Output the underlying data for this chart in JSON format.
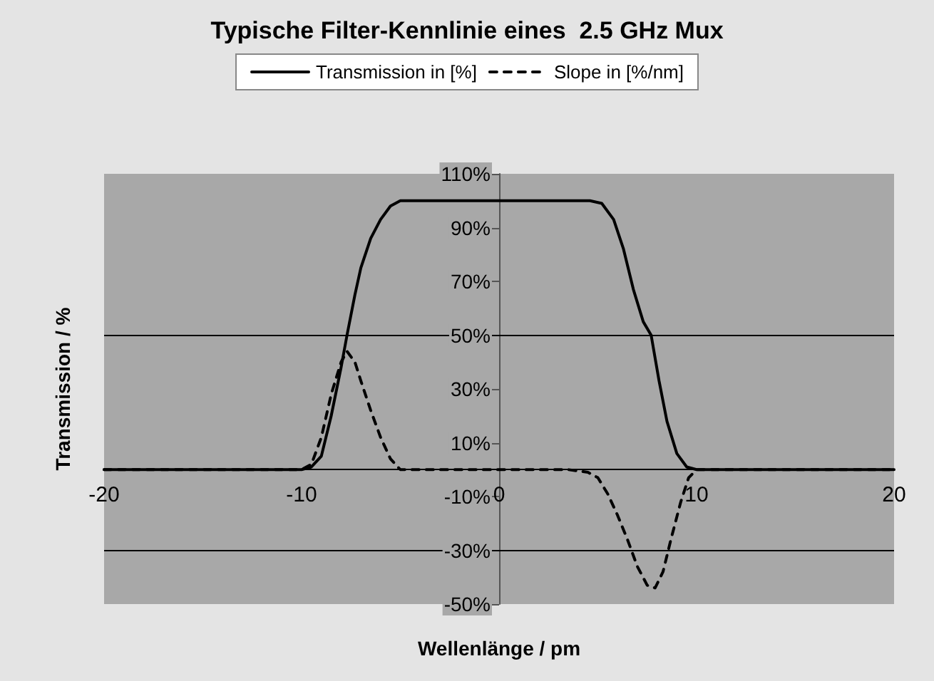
{
  "chart_data": {
    "type": "line",
    "title": "Typische Filter-Kennlinie eines  2.5 GHz Mux",
    "xlabel": "Wellenlänge / pm",
    "ylabel": "Transmission / %",
    "xlim": [
      -20,
      20
    ],
    "xticks": [
      -20,
      -10,
      0,
      10,
      20
    ],
    "ylim": [
      -50,
      110
    ],
    "yticks": [
      {
        "value": -50,
        "label": "-50%"
      },
      {
        "value": -30,
        "label": "-30%"
      },
      {
        "value": -10,
        "label": "-10%"
      },
      {
        "value": 10,
        "label": "10%"
      },
      {
        "value": 30,
        "label": "30%"
      },
      {
        "value": 50,
        "label": "50%"
      },
      {
        "value": 70,
        "label": "70%"
      },
      {
        "value": 90,
        "label": "90%"
      },
      {
        "value": 110,
        "label": "110%"
      }
    ],
    "grid": false,
    "legend": "top",
    "marker": "none",
    "ref_lines": [
      {
        "axis": "y",
        "value": 50,
        "color": "#000000"
      },
      {
        "axis": "y",
        "value": -30,
        "color": "#000000"
      }
    ],
    "series": [
      {
        "name": "Transmission in [%]",
        "color": "#000000",
        "line_style": "solid",
        "x": [
          -20,
          -10,
          -9.5,
          -9,
          -8.5,
          -8,
          -7.7,
          -7.3,
          -7,
          -6.5,
          -6,
          -5.5,
          -5,
          4.6,
          5.2,
          5.8,
          6.3,
          6.8,
          7.3,
          7.7,
          8.1,
          8.5,
          9,
          9.5,
          10,
          20
        ],
        "values": [
          0,
          0,
          1,
          5,
          20,
          38,
          50,
          65,
          75,
          86,
          93,
          98,
          100,
          100,
          99,
          93,
          82,
          67,
          55,
          50,
          33,
          18,
          6,
          1,
          0,
          0
        ]
      },
      {
        "name": "Slope in [%/nm]",
        "color": "#000000",
        "line_style": "dashed",
        "x": [
          -20,
          -10,
          -9.5,
          -9,
          -8.5,
          -8,
          -7.7,
          -7.3,
          -7,
          -6.5,
          -6,
          -5.5,
          -5,
          3.5,
          4.5,
          5,
          5.5,
          6,
          6.5,
          7,
          7.5,
          7.9,
          8.3,
          8.7,
          9.2,
          9.6,
          10,
          20
        ],
        "values": [
          0,
          0,
          2,
          12,
          28,
          40,
          44,
          40,
          33,
          22,
          12,
          4,
          0,
          0,
          -1,
          -3,
          -9,
          -17,
          -26,
          -36,
          -43,
          -44,
          -38,
          -26,
          -12,
          -3,
          0,
          0
        ]
      }
    ]
  }
}
